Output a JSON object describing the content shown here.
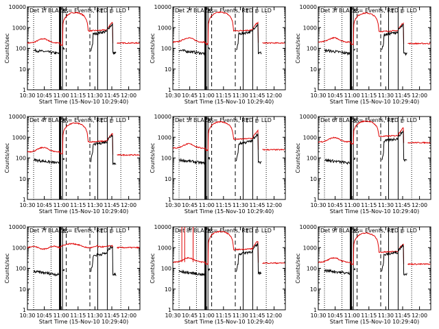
{
  "chart_data": {
    "type": "line",
    "x_tick_labels": [
      "10:30",
      "10:45",
      "11:00",
      "11:15",
      "11:30",
      "11:45",
      "12:00"
    ],
    "x_ticks_minutes": [
      0,
      15,
      30,
      45,
      60,
      75,
      90
    ],
    "xlim_minutes": [
      0,
      100
    ],
    "y_tick_labels": [
      "1",
      "10",
      "100",
      "1000",
      "10000"
    ],
    "ylim": [
      1,
      10000
    ],
    "y_scale": "log",
    "ylabel": "Counts/sec",
    "xlabel": "Start Time (15-Nov-10 10:29:40)",
    "legend_text": "BLACK = Events, RED = LLD",
    "interval_letters": [
      "B",
      "S",
      "T",
      "L"
    ],
    "colors": {
      "events": "#000000",
      "lld": "#e00000"
    },
    "vertical_lines": {
      "dotted_minutes": [
        5.5,
        21.0,
        83.0
      ],
      "thick_minutes": [
        29.0
      ],
      "solid_minutes": [
        31.2,
        62.5,
        71.0
      ],
      "dashed_minutes": [
        34.5,
        55.5
      ]
    },
    "panels": [
      {
        "title": "Det 1f",
        "lld_base": 180,
        "lld_peak": 5300,
        "lld_post": 700,
        "lld_tail": 180,
        "ev_base": 80,
        "ev_post": 600,
        "spikes": false,
        "flat_lld": false
      },
      {
        "title": "Det 2f",
        "lld_base": 200,
        "lld_peak": 5500,
        "lld_post": 700,
        "lld_tail": 180,
        "ev_base": 80,
        "ev_post": 600,
        "spikes": false,
        "flat_lld": false
      },
      {
        "title": "Det 3f",
        "lld_base": 200,
        "lld_peak": 5000,
        "lld_post": 650,
        "lld_tail": 170,
        "ev_base": 80,
        "ev_post": 550,
        "spikes": false,
        "flat_lld": false
      },
      {
        "title": "Det 4f",
        "lld_base": 200,
        "lld_peak": 4800,
        "lld_post": 600,
        "lld_tail": 140,
        "ev_base": 80,
        "ev_post": 550,
        "spikes": false,
        "flat_lld": false
      },
      {
        "title": "Det 5f",
        "lld_base": 300,
        "lld_peak": 5500,
        "lld_post": 800,
        "lld_tail": 250,
        "ev_base": 80,
        "ev_post": 600,
        "spikes": false,
        "flat_lld": false
      },
      {
        "title": "Det 6f",
        "lld_base": 600,
        "lld_peak": 6000,
        "lld_post": 1100,
        "lld_tail": 550,
        "ev_base": 80,
        "ev_post": 800,
        "spikes": false,
        "flat_lld": false
      },
      {
        "title": "Det 7f",
        "lld_base": 1000,
        "lld_peak": 1400,
        "lld_post": 1100,
        "lld_tail": 1000,
        "ev_base": 70,
        "ev_post": 500,
        "spikes": false,
        "flat_lld": true
      },
      {
        "title": "Det 8f",
        "lld_base": 200,
        "lld_peak": 6000,
        "lld_post": 800,
        "lld_tail": 180,
        "ev_base": 70,
        "ev_post": 600,
        "spikes": true,
        "flat_lld": false
      },
      {
        "title": "Det 9f",
        "lld_base": 200,
        "lld_peak": 5000,
        "lld_post": 600,
        "lld_tail": 160,
        "ev_base": 80,
        "ev_post": 550,
        "spikes": false,
        "flat_lld": false
      }
    ]
  }
}
